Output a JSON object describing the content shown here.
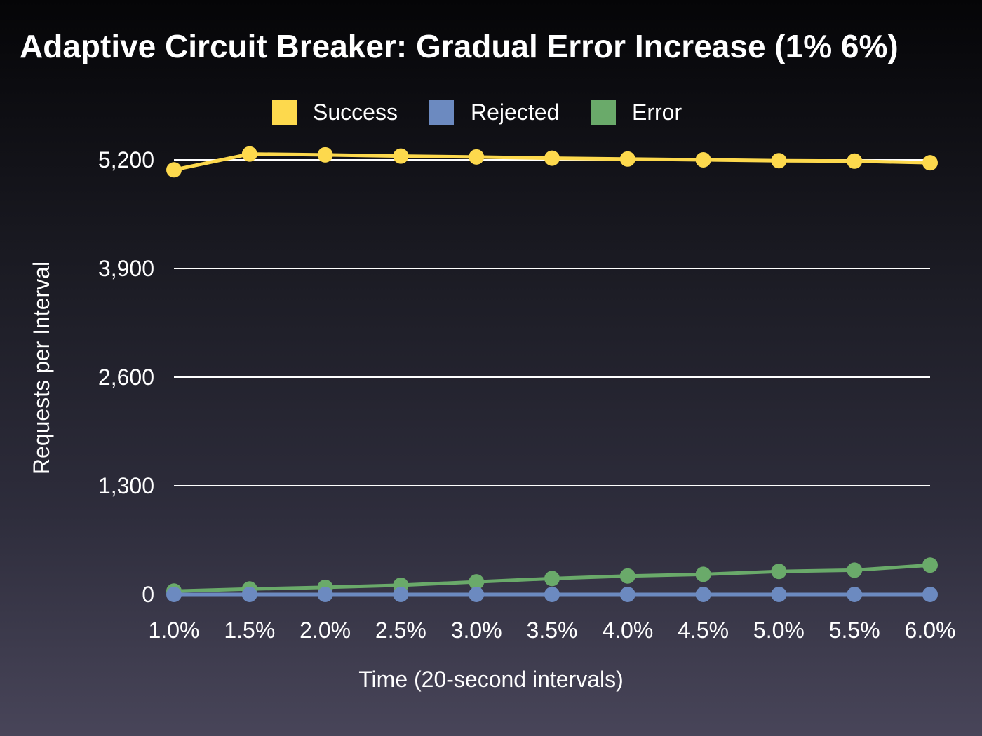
{
  "chart_data": {
    "type": "line",
    "title": "Adaptive Circuit Breaker: Gradual Error Increase (1%    6%)",
    "xlabel": "Time (20-second intervals)",
    "ylabel": "Requests per Interval",
    "categories": [
      "1.0%",
      "1.5%",
      "2.0%",
      "2.5%",
      "3.0%",
      "3.5%",
      "4.0%",
      "4.5%",
      "5.0%",
      "5.5%",
      "6.0%"
    ],
    "ylim": [
      0,
      5200
    ],
    "yticks": [
      0,
      1300,
      2600,
      3900,
      5200
    ],
    "ytick_labels": [
      "0",
      "1,300",
      "2,600",
      "3,900",
      "5,200"
    ],
    "grid": true,
    "legend_position": "top-center",
    "series": [
      {
        "name": "Success",
        "color": "#fdd94d",
        "values": [
          5080,
          5270,
          5260,
          5245,
          5235,
          5220,
          5210,
          5200,
          5190,
          5185,
          5165
        ]
      },
      {
        "name": "Rejected",
        "color": "#6c8ac0",
        "values": [
          0,
          0,
          0,
          0,
          0,
          0,
          0,
          0,
          0,
          0,
          0
        ]
      },
      {
        "name": "Error",
        "color": "#6aaa6a",
        "values": [
          40,
          65,
          85,
          110,
          150,
          190,
          220,
          240,
          275,
          290,
          350
        ]
      }
    ]
  }
}
